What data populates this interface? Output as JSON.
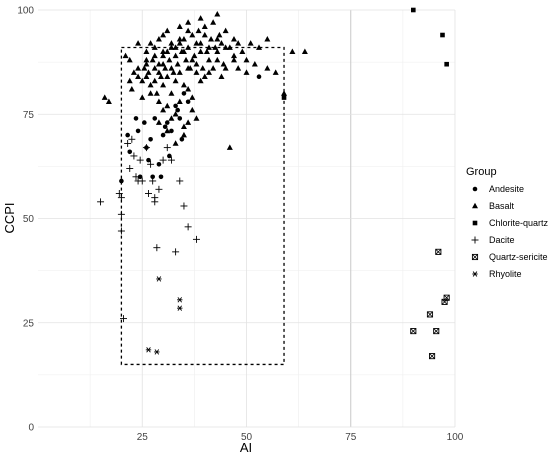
{
  "chart_data": {
    "type": "scatter",
    "xlabel": "AI",
    "ylabel": "CCPI",
    "xlim": [
      0,
      100
    ],
    "ylim": [
      0,
      100
    ],
    "x_ticks": [
      25,
      50,
      75,
      100
    ],
    "y_ticks": [
      0,
      25,
      50,
      75,
      100
    ],
    "grid": true,
    "legend_title": "Group",
    "legend_position": "right",
    "box": {
      "x0": 20,
      "x1": 59,
      "y0": 15,
      "y1": 91
    },
    "series": [
      {
        "name": "Andesite",
        "marker": "circle",
        "points": [
          [
            20,
            59
          ],
          [
            21.5,
            70
          ],
          [
            22,
            66
          ],
          [
            23.5,
            74
          ],
          [
            24,
            71
          ],
          [
            24.5,
            60
          ],
          [
            25.5,
            73
          ],
          [
            26,
            67
          ],
          [
            26.5,
            64
          ],
          [
            27,
            69
          ],
          [
            27.5,
            60
          ],
          [
            28,
            74
          ],
          [
            29,
            63
          ],
          [
            29.5,
            60
          ],
          [
            30,
            70
          ],
          [
            30.5,
            72
          ],
          [
            31,
            73
          ],
          [
            31.5,
            65
          ],
          [
            32,
            71
          ],
          [
            33,
            77
          ],
          [
            33.5,
            76
          ],
          [
            34,
            74
          ],
          [
            34.5,
            69
          ],
          [
            35,
            80
          ],
          [
            36,
            78
          ],
          [
            53,
            84
          ]
        ]
      },
      {
        "name": "Basalt",
        "marker": "triangle",
        "points": [
          [
            16,
            79
          ],
          [
            17,
            78
          ],
          [
            21,
            89
          ],
          [
            22,
            83
          ],
          [
            22.5,
            81
          ],
          [
            23,
            85
          ],
          [
            24,
            84
          ],
          [
            25,
            79
          ],
          [
            25.5,
            86
          ],
          [
            26,
            87
          ],
          [
            26.5,
            85
          ],
          [
            27,
            82
          ],
          [
            27.5,
            88
          ],
          [
            28,
            86
          ],
          [
            28.5,
            80
          ],
          [
            29,
            87
          ],
          [
            29.5,
            84
          ],
          [
            30,
            89
          ],
          [
            30.5,
            86
          ],
          [
            31,
            90
          ],
          [
            31.5,
            88
          ],
          [
            32,
            91
          ],
          [
            32.5,
            85
          ],
          [
            33,
            89
          ],
          [
            33.5,
            87
          ],
          [
            34,
            92
          ],
          [
            34.5,
            90
          ],
          [
            35,
            93
          ],
          [
            35.5,
            88
          ],
          [
            36,
            91
          ],
          [
            36.5,
            86
          ],
          [
            37,
            94
          ],
          [
            37.5,
            89
          ],
          [
            38,
            87
          ],
          [
            38.5,
            95
          ],
          [
            39,
            92
          ],
          [
            39.5,
            86
          ],
          [
            40,
            96
          ],
          [
            40.5,
            90
          ],
          [
            41,
            85
          ],
          [
            41.5,
            93
          ],
          [
            42,
            97
          ],
          [
            42.5,
            91
          ],
          [
            43,
            88
          ],
          [
            43.5,
            94
          ],
          [
            44,
            92
          ],
          [
            44.5,
            87
          ],
          [
            45,
            95
          ],
          [
            46,
            91
          ],
          [
            47,
            88
          ],
          [
            48,
            86
          ],
          [
            49,
            90
          ],
          [
            50,
            88
          ],
          [
            51,
            92
          ],
          [
            53,
            91
          ],
          [
            55,
            93
          ],
          [
            61,
            90
          ],
          [
            64,
            90
          ],
          [
            43,
            99
          ],
          [
            39,
            98
          ],
          [
            36,
            95
          ],
          [
            34,
            93
          ],
          [
            32,
            92
          ],
          [
            30,
            90
          ],
          [
            28,
            89
          ],
          [
            26,
            88
          ],
          [
            24,
            86
          ],
          [
            29,
            85
          ],
          [
            31,
            84
          ],
          [
            33,
            83
          ],
          [
            35,
            82
          ],
          [
            36,
            81
          ],
          [
            37,
            79
          ],
          [
            30,
            82
          ],
          [
            32,
            80
          ],
          [
            34,
            78
          ],
          [
            33,
            75
          ],
          [
            31,
            77
          ],
          [
            29,
            78
          ],
          [
            27,
            80
          ],
          [
            25,
            83
          ],
          [
            40,
            84
          ],
          [
            42,
            86
          ],
          [
            44,
            84
          ],
          [
            46,
            67
          ],
          [
            35,
            70
          ],
          [
            36,
            73
          ],
          [
            38,
            74
          ],
          [
            37,
            76
          ],
          [
            39,
            83
          ],
          [
            41,
            88
          ],
          [
            43,
            90
          ],
          [
            45,
            86
          ],
          [
            47,
            89
          ],
          [
            48,
            92
          ],
          [
            50,
            85
          ],
          [
            52,
            87
          ],
          [
            55,
            86
          ],
          [
            57,
            85
          ],
          [
            59,
            80
          ],
          [
            38,
            92
          ],
          [
            40,
            94
          ],
          [
            36,
            97
          ],
          [
            34,
            96
          ],
          [
            30,
            94
          ],
          [
            28,
            91
          ],
          [
            26,
            90
          ],
          [
            24,
            92
          ],
          [
            22,
            88
          ],
          [
            27,
            92
          ],
          [
            29,
            93
          ],
          [
            31,
            95
          ],
          [
            33,
            91
          ],
          [
            35,
            90
          ],
          [
            37,
            88
          ],
          [
            39,
            90
          ],
          [
            41,
            91
          ],
          [
            43,
            93
          ],
          [
            45,
            91
          ],
          [
            47,
            93
          ],
          [
            30,
            87
          ],
          [
            32,
            86
          ],
          [
            34,
            85
          ],
          [
            36,
            86
          ],
          [
            38,
            85
          ],
          [
            26,
            84
          ],
          [
            28,
            83
          ],
          [
            30,
            76
          ],
          [
            32,
            74
          ],
          [
            31,
            71
          ],
          [
            33,
            68
          ],
          [
            35,
            72
          ],
          [
            29,
            73
          ]
        ]
      },
      {
        "name": "Chlorite-quartz",
        "marker": "square",
        "points": [
          [
            59,
            79
          ],
          [
            90,
            100
          ],
          [
            97,
            94
          ],
          [
            98,
            87
          ]
        ]
      },
      {
        "name": "Dacite",
        "marker": "plus",
        "points": [
          [
            15,
            54
          ],
          [
            19.5,
            56
          ],
          [
            20,
            55
          ],
          [
            20,
            51
          ],
          [
            20,
            47
          ],
          [
            20.5,
            26
          ],
          [
            21.5,
            68
          ],
          [
            22,
            62
          ],
          [
            22.5,
            69
          ],
          [
            23,
            65
          ],
          [
            23.5,
            60
          ],
          [
            24,
            59
          ],
          [
            24.5,
            64
          ],
          [
            25,
            59
          ],
          [
            26,
            67
          ],
          [
            26.5,
            56
          ],
          [
            27,
            63
          ],
          [
            27.5,
            59
          ],
          [
            28,
            54
          ],
          [
            28.5,
            43
          ],
          [
            29,
            57
          ],
          [
            30,
            64
          ],
          [
            31,
            67
          ],
          [
            32,
            64
          ],
          [
            33,
            42
          ],
          [
            34,
            59
          ],
          [
            35,
            53
          ],
          [
            36,
            48
          ],
          [
            38,
            45
          ],
          [
            28,
            55
          ]
        ]
      },
      {
        "name": "Quartz-sericite",
        "marker": "boxcross",
        "points": [
          [
            90,
            23
          ],
          [
            94,
            27
          ],
          [
            94.5,
            17
          ],
          [
            95.5,
            23
          ],
          [
            96,
            42
          ],
          [
            97.5,
            30
          ],
          [
            98,
            31
          ]
        ]
      },
      {
        "name": "Rhyolite",
        "marker": "asterisk",
        "points": [
          [
            26.5,
            18.5
          ],
          [
            28.5,
            18
          ],
          [
            29,
            35.5
          ],
          [
            34,
            30.5
          ],
          [
            34,
            28.5
          ]
        ]
      }
    ]
  }
}
